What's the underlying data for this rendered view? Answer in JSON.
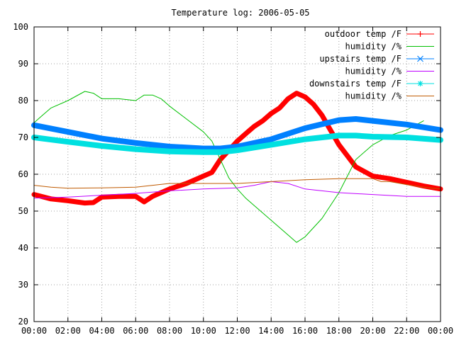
{
  "chart_data": {
    "type": "line",
    "title": "Temperature log: 2006-05-05",
    "xlabel": "",
    "ylabel": "",
    "x_unit": "hours",
    "xlim": [
      0,
      24
    ],
    "ylim": [
      20,
      100
    ],
    "x_ticks": [
      0,
      2,
      4,
      6,
      8,
      10,
      12,
      14,
      16,
      18,
      20,
      22,
      24
    ],
    "x_tick_labels": [
      "00:00",
      "02:00",
      "04:00",
      "06:00",
      "08:00",
      "10:00",
      "12:00",
      "14:00",
      "16:00",
      "18:00",
      "20:00",
      "22:00",
      "00:00"
    ],
    "y_ticks": [
      20,
      30,
      40,
      50,
      60,
      70,
      80,
      90,
      100
    ],
    "y_tick_labels": [
      "20",
      "30",
      "40",
      "50",
      "60",
      "70",
      "80",
      "90",
      "100"
    ],
    "grid": true,
    "legend_position": "top-right",
    "series": [
      {
        "name": "outdoor temp /F",
        "color": "#ff0000",
        "marker": "plus",
        "x": [
          0,
          1,
          2,
          3,
          3.5,
          4,
          5,
          6,
          6.5,
          7,
          8,
          9,
          10,
          10.5,
          11,
          11.5,
          12,
          12.5,
          13,
          13.5,
          14,
          14.5,
          15,
          15.5,
          16,
          16.5,
          17,
          17.5,
          18,
          18.5,
          19,
          20,
          21,
          22,
          23,
          24
        ],
        "y": [
          54.5,
          53.3,
          52.8,
          52.2,
          52.3,
          53.8,
          54,
          54,
          52.5,
          54,
          56,
          57.5,
          59.5,
          60.5,
          64,
          66.5,
          69,
          71,
          73,
          74.5,
          76.5,
          78,
          80.5,
          82,
          81,
          79,
          76,
          72,
          68,
          65,
          62,
          59.5,
          58.8,
          57.8,
          56.8,
          56
        ]
      },
      {
        "name": "humidity /%",
        "color": "#00c000",
        "x": [
          0,
          0.5,
          1,
          2,
          3,
          3.5,
          4,
          4.5,
          5,
          6,
          6.5,
          7,
          7.5,
          8,
          9,
          10,
          10.5,
          11,
          11.5,
          12,
          12.5,
          13,
          14,
          15,
          15.5,
          16,
          17,
          18,
          18.5,
          19,
          20,
          21,
          22,
          23
        ],
        "y": [
          74,
          76,
          78,
          80,
          82.5,
          82,
          80.5,
          80.5,
          80.5,
          80,
          81.5,
          81.5,
          80.5,
          78.5,
          75,
          71.5,
          69,
          64,
          59,
          56,
          53.5,
          51.5,
          47.5,
          43.5,
          41.5,
          43,
          48,
          55,
          59.5,
          64,
          68,
          70.5,
          72,
          74.5
        ]
      },
      {
        "name": "upstairs temp /F",
        "color": "#0080ff",
        "marker": "cross",
        "x": [
          0,
          2,
          4,
          6,
          8,
          10,
          11,
          12,
          14,
          16,
          18,
          19,
          20,
          22,
          24
        ],
        "y": [
          73.3,
          71.5,
          69.7,
          68.5,
          67.5,
          67,
          67,
          67.5,
          69.5,
          72.5,
          74.7,
          75,
          74.5,
          73.5,
          72
        ]
      },
      {
        "name": "humidity /%",
        "color": "#c000ff",
        "x": [
          0,
          2,
          4,
          6,
          8,
          10,
          12,
          13,
          13.5,
          14,
          15,
          16,
          18,
          20,
          22,
          24
        ],
        "y": [
          53.5,
          53.8,
          54.3,
          54.8,
          55.5,
          56,
          56.3,
          57,
          57.5,
          58,
          57.5,
          56,
          55,
          54.5,
          54,
          54
        ]
      },
      {
        "name": "downstairs temp /F",
        "color": "#00e0e0",
        "marker": "star",
        "x": [
          0,
          2,
          4,
          6,
          8,
          10,
          11,
          12,
          14,
          16,
          18,
          19,
          20,
          22,
          24
        ],
        "y": [
          70,
          68.8,
          67.7,
          66.8,
          66.2,
          66,
          66,
          66.5,
          68,
          69.5,
          70.5,
          70.5,
          70.2,
          70,
          69.3
        ]
      },
      {
        "name": "humidity /%",
        "color": "#c05a00",
        "x": [
          0,
          1,
          2,
          4,
          6,
          7,
          8,
          10,
          12,
          14,
          16,
          18,
          20,
          20.5,
          21,
          22,
          23,
          24
        ],
        "y": [
          57,
          56.5,
          56.2,
          56.3,
          56.5,
          57,
          57.5,
          57.5,
          57.5,
          58,
          58.5,
          58.8,
          58.8,
          58,
          58,
          57.2,
          56.5,
          56
        ]
      }
    ]
  }
}
